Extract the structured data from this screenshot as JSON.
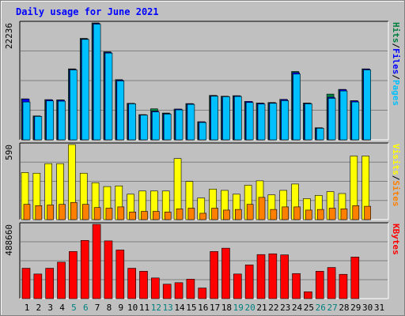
{
  "chart_data": [
    {
      "type": "bar",
      "title": "Daily usage for June 2021",
      "panel": "hits-files-pages",
      "categories": [
        "1",
        "2",
        "3",
        "4",
        "5",
        "6",
        "7",
        "8",
        "9",
        "10",
        "11",
        "12",
        "13",
        "14",
        "15",
        "16",
        "17",
        "18",
        "19",
        "20",
        "21",
        "22",
        "23",
        "24",
        "25",
        "26",
        "27",
        "28",
        "29",
        "30",
        "31"
      ],
      "weekend_days": [
        "5",
        "6",
        "12",
        "13",
        "19",
        "20",
        "26",
        "27"
      ],
      "y_tick_label": "22236",
      "ylim": [
        0,
        22236
      ],
      "legend_side": [
        "Pages",
        "/",
        "Files",
        "/",
        "Hits"
      ],
      "series": [
        {
          "name": "Hits",
          "color": "#008040",
          "values": [
            7800,
            4550,
            7650,
            7600,
            13500,
            19300,
            22236,
            16750,
            11450,
            6950,
            4800,
            5900,
            5100,
            5850,
            6900,
            3450,
            8450,
            8300,
            8400,
            7300,
            7000,
            7100,
            7700,
            13000,
            7000,
            2300,
            8700,
            9600,
            7450,
            13500,
            null
          ]
        },
        {
          "name": "Files",
          "color": "#0000ff",
          "values": [
            7750,
            4500,
            7600,
            7550,
            13400,
            19200,
            22150,
            16650,
            11350,
            6900,
            4750,
            5450,
            5000,
            5850,
            6850,
            3400,
            8400,
            8250,
            8350,
            7300,
            6950,
            7050,
            7650,
            12800,
            6950,
            2250,
            8100,
            9550,
            7400,
            13450,
            null
          ]
        },
        {
          "name": "Pages",
          "color": "#00c0ff",
          "values": [
            7200,
            4450,
            7400,
            7350,
            13300,
            19100,
            22000,
            16500,
            11200,
            6850,
            4700,
            5300,
            4900,
            5700,
            6750,
            3300,
            8300,
            8200,
            8250,
            7100,
            6800,
            6950,
            7450,
            12500,
            6850,
            2200,
            7900,
            9300,
            7200,
            13300,
            null
          ]
        }
      ]
    },
    {
      "type": "bar",
      "panel": "visits-sites",
      "categories": [
        "1",
        "2",
        "3",
        "4",
        "5",
        "6",
        "7",
        "8",
        "9",
        "10",
        "11",
        "12",
        "13",
        "14",
        "15",
        "16",
        "17",
        "18",
        "19",
        "20",
        "21",
        "22",
        "23",
        "24",
        "25",
        "26",
        "27",
        "28",
        "29",
        "30",
        "31"
      ],
      "y_tick_label": "590",
      "ylim": [
        0,
        590
      ],
      "legend_side": [
        "Sites",
        "/",
        "Visits"
      ],
      "series": [
        {
          "name": "Visits",
          "color": "#ffff00",
          "values": [
            370,
            365,
            440,
            440,
            590,
            365,
            290,
            260,
            265,
            200,
            225,
            225,
            225,
            480,
            300,
            170,
            240,
            230,
            200,
            270,
            305,
            195,
            230,
            280,
            165,
            190,
            220,
            205,
            500,
            500,
            null
          ]
        },
        {
          "name": "Sites",
          "color": "#ff8000",
          "values": [
            120,
            110,
            115,
            120,
            135,
            120,
            95,
            90,
            100,
            60,
            65,
            65,
            60,
            85,
            90,
            50,
            90,
            75,
            80,
            120,
            175,
            80,
            100,
            100,
            75,
            80,
            90,
            85,
            110,
            105,
            null
          ]
        }
      ]
    },
    {
      "type": "bar",
      "panel": "kbytes",
      "categories": [
        "1",
        "2",
        "3",
        "4",
        "5",
        "6",
        "7",
        "8",
        "9",
        "10",
        "11",
        "12",
        "13",
        "14",
        "15",
        "16",
        "17",
        "18",
        "19",
        "20",
        "21",
        "22",
        "23",
        "24",
        "25",
        "26",
        "27",
        "28",
        "29",
        "30",
        "31"
      ],
      "y_tick_label": "488660",
      "ylim": [
        0,
        488660
      ],
      "legend_side": [
        "KBytes"
      ],
      "series": [
        {
          "name": "KBytes",
          "color": "#ff0000",
          "values": [
            200000,
            162000,
            200000,
            240000,
            310000,
            383000,
            488660,
            380000,
            320000,
            200000,
            180000,
            136000,
            95000,
            105000,
            128000,
            70000,
            310000,
            332000,
            162000,
            222000,
            290000,
            295000,
            288000,
            165000,
            45000,
            180000,
            205000,
            160000,
            274000,
            null,
            null
          ]
        }
      ]
    }
  ]
}
